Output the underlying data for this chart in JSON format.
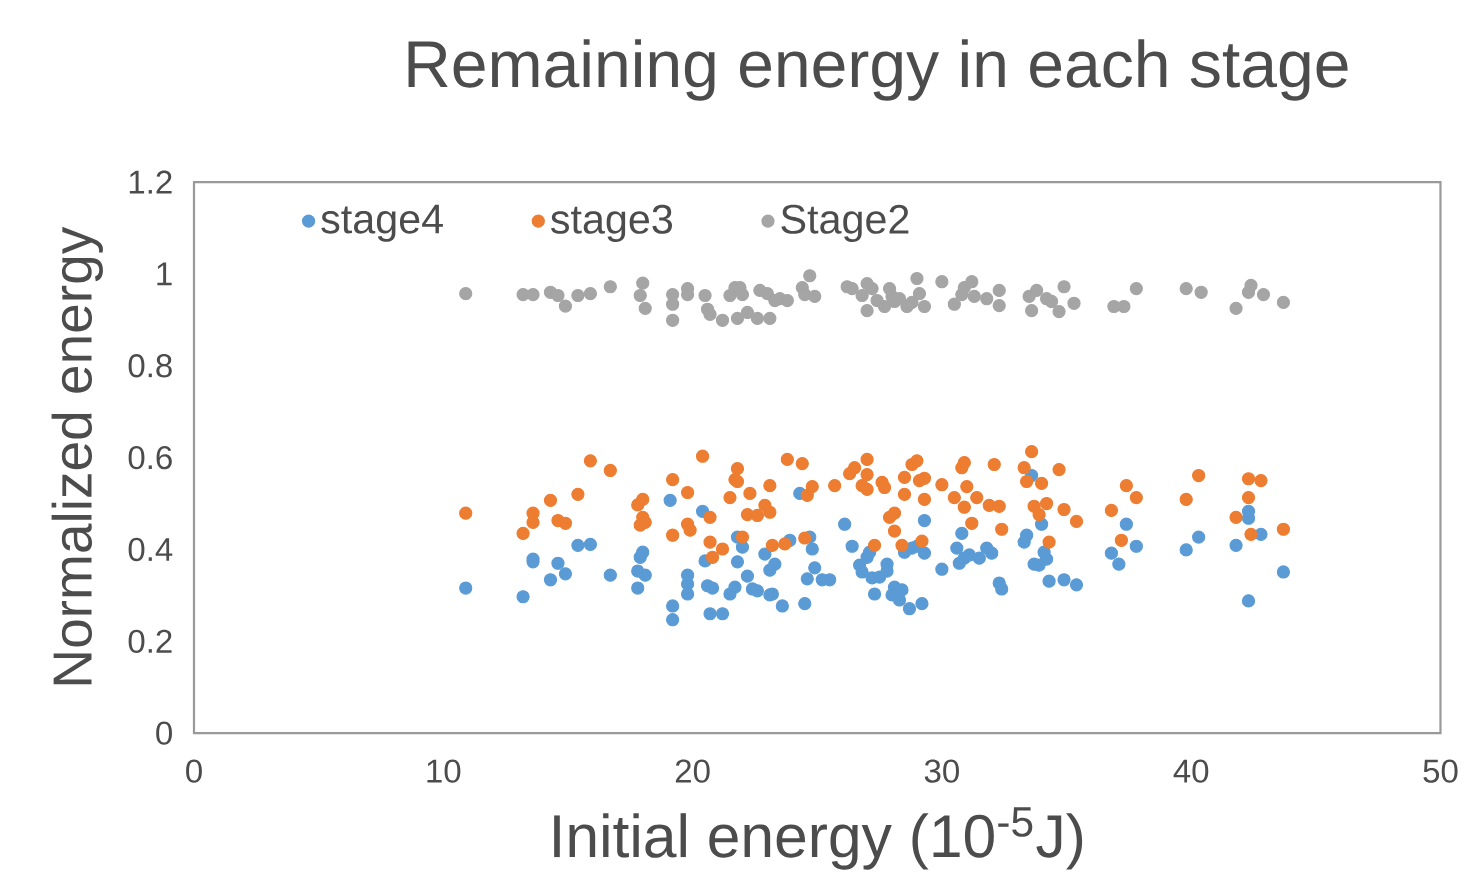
{
  "chart_data": {
    "type": "scatter",
    "title": "Remaining energy in each stage",
    "xlabel": "Initial energy (10$^{-5}$J)",
    "ylabel": "Normalized energy",
    "xlim": [
      0,
      50
    ],
    "xticks": [
      0,
      10,
      20,
      30,
      40,
      50
    ],
    "ylim": [
      0,
      1.2
    ],
    "yticks": [
      0,
      0.2,
      0.4,
      0.6,
      0.8,
      1,
      1.2
    ],
    "grid": false,
    "legend": "top left",
    "marker": "circle",
    "series": [
      {
        "name": "stage4",
        "color": "#5b9bd5",
        "x": [
          10.9,
          13.2,
          13.6,
          13.6,
          14.3,
          14.6,
          14.9,
          15.4,
          15.9,
          16.7,
          17.8,
          17.8,
          17.9,
          18.0,
          18.1,
          19.1,
          19.2,
          19.2,
          19.8,
          19.8,
          19.8,
          20.4,
          20.5,
          20.6,
          20.7,
          20.8,
          21.2,
          21.5,
          21.7,
          21.8,
          21.8,
          22.0,
          22.2,
          22.4,
          22.6,
          22.9,
          23.1,
          23.1,
          23.2,
          23.3,
          23.6,
          23.9,
          24.3,
          24.5,
          24.6,
          24.7,
          24.8,
          24.9,
          25.2,
          25.5,
          26.1,
          26.4,
          26.7,
          26.8,
          27.0,
          27.1,
          27.2,
          27.3,
          27.5,
          27.8,
          27.8,
          28.0,
          28.1,
          28.3,
          28.4,
          28.5,
          28.7,
          28.8,
          29.0,
          29.2,
          29.3,
          29.3,
          30.0,
          30.6,
          30.7,
          30.8,
          30.9,
          31.1,
          31.5,
          31.8,
          32.0,
          32.3,
          32.4,
          33.3,
          33.4,
          33.6,
          33.7,
          33.9,
          34.0,
          34.1,
          34.2,
          34.3,
          34.9,
          35.4,
          36.8,
          37.1,
          37.4,
          37.8,
          39.8,
          40.3,
          41.8,
          42.3,
          42.3,
          42.3,
          42.8,
          43.7
        ],
        "values": [
          0.316,
          0.297,
          0.379,
          0.373,
          0.334,
          0.37,
          0.347,
          0.409,
          0.411,
          0.344,
          0.353,
          0.316,
          0.383,
          0.394,
          0.344,
          0.507,
          0.277,
          0.247,
          0.344,
          0.325,
          0.303,
          0.483,
          0.375,
          0.321,
          0.26,
          0.316,
          0.26,
          0.303,
          0.318,
          0.373,
          0.427,
          0.405,
          0.342,
          0.314,
          0.31,
          0.39,
          0.355,
          0.301,
          0.303,
          0.368,
          0.277,
          0.42,
          0.522,
          0.282,
          0.336,
          0.427,
          0.401,
          0.36,
          0.334,
          0.334,
          0.455,
          0.407,
          0.366,
          0.351,
          0.383,
          0.394,
          0.338,
          0.303,
          0.34,
          0.353,
          0.368,
          0.301,
          0.318,
          0.29,
          0.312,
          0.394,
          0.271,
          0.403,
          0.407,
          0.282,
          0.463,
          0.392,
          0.357,
          0.403,
          0.37,
          0.435,
          0.381,
          0.388,
          0.381,
          0.403,
          0.392,
          0.327,
          0.314,
          0.416,
          0.431,
          0.561,
          0.368,
          0.366,
          0.455,
          0.394,
          0.379,
          0.331,
          0.334,
          0.323,
          0.392,
          0.368,
          0.455,
          0.407,
          0.399,
          0.427,
          0.409,
          0.483,
          0.468,
          0.288,
          0.433,
          0.351
        ]
      },
      {
        "name": "stage3",
        "color": "#ed7d31",
        "x": [
          10.9,
          13.2,
          13.6,
          13.6,
          14.3,
          14.6,
          14.9,
          15.4,
          15.9,
          16.7,
          17.8,
          17.9,
          18.0,
          18.0,
          18.1,
          19.2,
          19.2,
          19.8,
          19.8,
          19.9,
          20.4,
          20.7,
          20.7,
          20.8,
          21.2,
          21.5,
          21.7,
          21.8,
          21.8,
          22.0,
          22.3,
          22.2,
          22.6,
          22.9,
          23.1,
          23.1,
          23.2,
          23.7,
          23.8,
          24.4,
          24.6,
          24.5,
          24.8,
          25.7,
          26.3,
          26.5,
          26.8,
          27.0,
          27.0,
          27.0,
          27.3,
          27.6,
          27.7,
          27.9,
          28.1,
          28.1,
          28.4,
          28.5,
          28.5,
          28.8,
          29.0,
          29.1,
          29.3,
          29.3,
          29.2,
          30.0,
          30.5,
          30.8,
          30.9,
          31.0,
          30.9,
          31.2,
          31.4,
          31.9,
          32.1,
          32.3,
          32.4,
          33.3,
          33.6,
          33.4,
          33.7,
          33.9,
          34.0,
          34.2,
          34.3,
          34.7,
          34.9,
          35.4,
          36.8,
          37.2,
          37.4,
          37.8,
          39.8,
          40.3,
          41.8,
          42.3,
          42.3,
          42.4,
          42.8,
          43.7
        ],
        "values": [
          0.479,
          0.435,
          0.479,
          0.459,
          0.507,
          0.463,
          0.457,
          0.52,
          0.593,
          0.572,
          0.497,
          0.453,
          0.509,
          0.47,
          0.459,
          0.431,
          0.552,
          0.524,
          0.455,
          0.442,
          0.603,
          0.47,
          0.416,
          0.383,
          0.401,
          0.513,
          0.552,
          0.576,
          0.548,
          0.427,
          0.522,
          0.476,
          0.474,
          0.496,
          0.539,
          0.481,
          0.409,
          0.412,
          0.596,
          0.587,
          0.518,
          0.425,
          0.537,
          0.539,
          0.565,
          0.578,
          0.539,
          0.596,
          0.563,
          0.531,
          0.409,
          0.546,
          0.535,
          0.47,
          0.479,
          0.44,
          0.409,
          0.557,
          0.52,
          0.585,
          0.593,
          0.55,
          0.555,
          0.509,
          0.418,
          0.541,
          0.513,
          0.578,
          0.589,
          0.537,
          0.492,
          0.457,
          0.513,
          0.496,
          0.585,
          0.494,
          0.444,
          0.578,
          0.613,
          0.548,
          0.494,
          0.476,
          0.544,
          0.5,
          0.416,
          0.574,
          0.487,
          0.461,
          0.485,
          0.42,
          0.539,
          0.513,
          0.509,
          0.561,
          0.47,
          0.554,
          0.513,
          0.433,
          0.55,
          0.444
        ]
      },
      {
        "name": "Stage2",
        "color": "#a5a5a5",
        "x": [
          10.9,
          13.2,
          13.6,
          14.3,
          14.6,
          14.9,
          15.4,
          15.9,
          16.7,
          17.9,
          18.0,
          18.1,
          19.2,
          19.2,
          19.2,
          19.8,
          19.8,
          20.5,
          20.6,
          20.7,
          21.2,
          21.5,
          21.7,
          21.8,
          21.9,
          22.0,
          22.2,
          22.6,
          22.7,
          23.0,
          23.1,
          23.3,
          23.5,
          23.8,
          24.4,
          24.5,
          24.7,
          24.9,
          26.2,
          26.4,
          26.8,
          27.0,
          27.0,
          27.2,
          27.4,
          27.7,
          27.9,
          28.0,
          28.1,
          28.3,
          28.6,
          28.8,
          29.0,
          29.1,
          29.3,
          30.0,
          30.5,
          30.8,
          30.9,
          31.2,
          31.3,
          31.8,
          32.3,
          32.3,
          33.5,
          33.6,
          33.8,
          34.2,
          34.4,
          34.7,
          34.9,
          35.3,
          36.9,
          37.3,
          37.8,
          39.8,
          40.4,
          41.8,
          42.3,
          42.4,
          42.9,
          43.7
        ],
        "values": [
          0.957,
          0.955,
          0.955,
          0.96,
          0.953,
          0.93,
          0.953,
          0.957,
          0.972,
          0.953,
          0.98,
          0.925,
          0.899,
          0.934,
          0.955,
          0.968,
          0.955,
          0.953,
          0.923,
          0.912,
          0.899,
          0.953,
          0.97,
          0.903,
          0.97,
          0.955,
          0.916,
          0.903,
          0.964,
          0.957,
          0.903,
          0.942,
          0.946,
          0.942,
          0.97,
          0.955,
          0.996,
          0.951,
          0.972,
          0.968,
          0.953,
          0.92,
          0.979,
          0.968,
          0.942,
          0.929,
          0.968,
          0.951,
          0.94,
          0.946,
          0.929,
          0.938,
          0.99,
          0.957,
          0.929,
          0.983,
          0.934,
          0.955,
          0.97,
          0.983,
          0.951,
          0.946,
          0.964,
          0.931,
          0.951,
          0.92,
          0.964,
          0.946,
          0.94,
          0.918,
          0.972,
          0.936,
          0.929,
          0.929,
          0.968,
          0.968,
          0.96,
          0.925,
          0.96,
          0.975,
          0.955,
          0.938
        ]
      }
    ]
  }
}
